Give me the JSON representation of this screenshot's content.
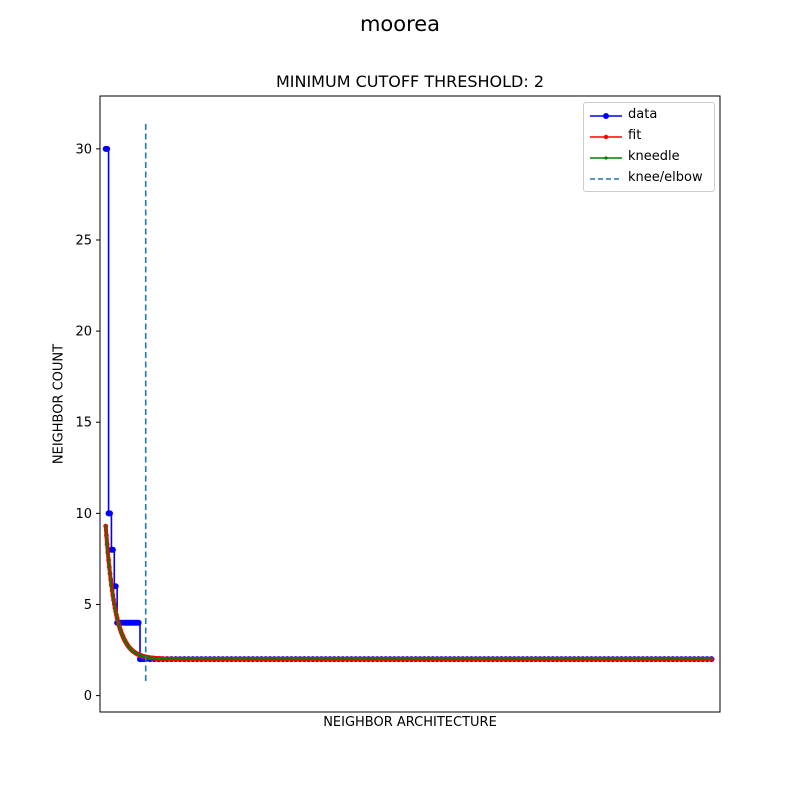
{
  "figure": {
    "suptitle": "moorea"
  },
  "chart_data": {
    "type": "line",
    "title": "MINIMUM CUTOFF THRESHOLD: 2",
    "xlabel": "NEIGHBOR ARCHITECTURE",
    "ylabel": "NEIGHBOR COUNT",
    "xlim": [
      -2,
      215
    ],
    "ylim": [
      -0.9,
      32.9
    ],
    "yticks": [
      0,
      5,
      10,
      15,
      20,
      25,
      30
    ],
    "xticks_shown": false,
    "grid": false,
    "legend_position": "top-right",
    "knee_x": 14,
    "series": [
      {
        "name": "data",
        "color": "#0000ff",
        "marker": "o",
        "x": [
          0,
          1,
          2,
          3,
          4,
          5,
          6,
          7,
          8,
          9,
          10,
          11,
          12,
          13,
          14,
          20,
          40,
          60,
          80,
          100,
          120,
          140,
          160,
          180,
          200,
          212
        ],
        "y": [
          30,
          10,
          8,
          6,
          4,
          4,
          4,
          4,
          4,
          4,
          4,
          4,
          2,
          2,
          2,
          2,
          2,
          2,
          2,
          2,
          2,
          2,
          2,
          2,
          2,
          2
        ]
      },
      {
        "name": "fit",
        "color": "#ff0000",
        "marker": ".",
        "x": [
          0,
          1,
          2,
          3,
          4,
          5,
          6,
          8,
          10,
          12,
          14,
          16,
          20,
          30,
          50,
          80,
          110,
          140,
          170,
          200,
          212
        ],
        "y": [
          9.3,
          8.0,
          6.9,
          6.0,
          5.2,
          4.5,
          4.0,
          3.2,
          2.7,
          2.4,
          2.2,
          2.1,
          2.05,
          2.0,
          2.0,
          2.0,
          2.0,
          2.0,
          2.0,
          2.0,
          2.0
        ]
      },
      {
        "name": "kneedle",
        "color": "#008000",
        "marker": ".",
        "x": [
          0,
          1,
          2,
          3,
          4,
          5,
          6,
          8,
          10,
          12,
          14,
          16,
          20,
          30,
          50,
          80,
          110,
          140,
          170,
          200,
          212
        ],
        "y": [
          9.3,
          8.0,
          6.9,
          6.0,
          5.2,
          4.5,
          4.0,
          3.2,
          2.7,
          2.4,
          2.2,
          2.1,
          2.05,
          2.0,
          2.0,
          2.0,
          2.0,
          2.0,
          2.0,
          2.0,
          2.0
        ]
      },
      {
        "name": "knee/elbow",
        "color": "#1f77b4",
        "style": "dashed"
      }
    ]
  }
}
